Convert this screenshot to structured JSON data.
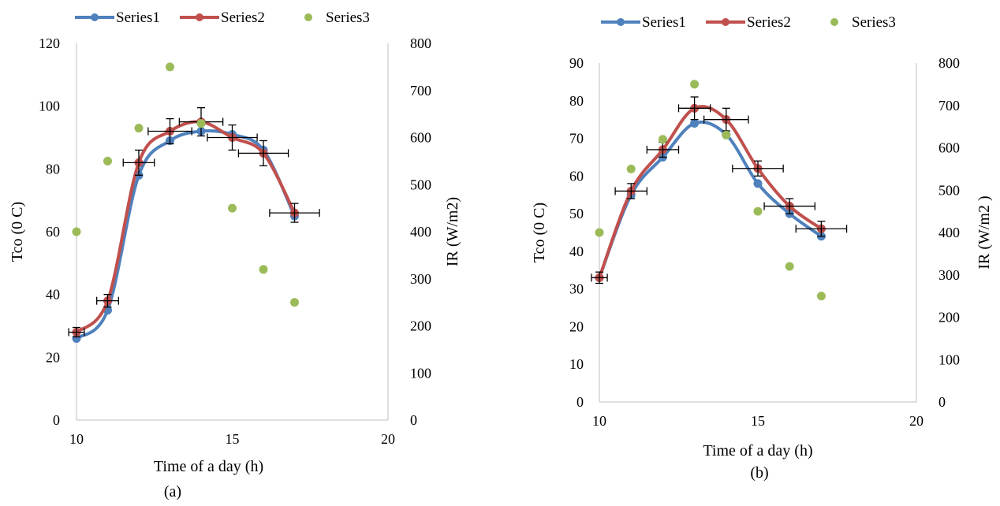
{
  "colors": {
    "series1": "#4f81bd",
    "series2": "#c0504d",
    "series3": "#9bbb59",
    "axis": "#bfbfbf",
    "errorbar": "#000000"
  },
  "chart_data": [
    {
      "type": "line",
      "caption": "(a)",
      "legend": {
        "position": "top",
        "entries": [
          "Series1",
          "Series2",
          "Series3"
        ]
      },
      "xlabel": "Time of a day (h)",
      "ylabel": "Tco (0 C)",
      "y2label": "IR (W/m2)",
      "xlim": [
        10,
        20
      ],
      "ylim": [
        0,
        120
      ],
      "y2lim": [
        0,
        800
      ],
      "xticks": [
        "10",
        "15",
        "20"
      ],
      "yticks": [
        "0",
        "20",
        "40",
        "60",
        "80",
        "100",
        "120"
      ],
      "y2ticks": [
        "0",
        "100",
        "200",
        "300",
        "400",
        "500",
        "600",
        "700",
        "800"
      ],
      "grid": false,
      "series": [
        {
          "name": "Series1",
          "axis": "left",
          "style": "smooth-line",
          "x": [
            10,
            11,
            12,
            13,
            14,
            15,
            16,
            17
          ],
          "y": [
            26,
            35,
            78,
            89,
            92,
            91,
            86,
            65
          ]
        },
        {
          "name": "Series2",
          "axis": "left",
          "style": "smooth-line",
          "x": [
            10,
            11,
            12,
            13,
            14,
            15,
            16,
            17
          ],
          "y": [
            28,
            38,
            82,
            92,
            95,
            90,
            85,
            66
          ],
          "xerr": [
            0.25,
            0.35,
            0.5,
            0.7,
            0.7,
            0.8,
            0.8,
            0.8
          ],
          "yerr": [
            1.5,
            2,
            4,
            4,
            4.5,
            4,
            4,
            3
          ]
        },
        {
          "name": "Series3",
          "axis": "right",
          "style": "scatter",
          "x": [
            10,
            11,
            12,
            13,
            14,
            15,
            16,
            17
          ],
          "y": [
            400,
            550,
            620,
            750,
            630,
            450,
            320,
            250
          ]
        }
      ]
    },
    {
      "type": "line",
      "caption": "(b)",
      "legend": {
        "position": "top",
        "entries": [
          "Series1",
          "Series2",
          "Series3"
        ]
      },
      "xlabel": "Time of a day (h)",
      "ylabel": "Tco (0 C)",
      "y2label": "IR (W/m2 )",
      "xlim": [
        10,
        20
      ],
      "ylim": [
        0,
        90
      ],
      "y2lim": [
        0,
        800
      ],
      "xticks": [
        "10",
        "15",
        "20"
      ],
      "yticks": [
        "0",
        "10",
        "20",
        "30",
        "40",
        "50",
        "60",
        "70",
        "80",
        "90"
      ],
      "y2ticks": [
        "0",
        "100",
        "200",
        "300",
        "400",
        "500",
        "600",
        "700",
        "800"
      ],
      "grid": false,
      "series": [
        {
          "name": "Series1",
          "axis": "left",
          "style": "smooth-line",
          "x": [
            10,
            11,
            12,
            13,
            14,
            15,
            16,
            17
          ],
          "y": [
            33,
            55,
            65,
            74,
            71,
            58,
            50,
            44
          ]
        },
        {
          "name": "Series2",
          "axis": "left",
          "style": "smooth-line",
          "x": [
            10,
            11,
            12,
            13,
            14,
            15,
            16,
            17
          ],
          "y": [
            33,
            56,
            67,
            78,
            75,
            62,
            52,
            46
          ],
          "xerr": [
            0.25,
            0.5,
            0.5,
            0.5,
            0.7,
            0.8,
            0.8,
            0.8
          ],
          "yerr": [
            1.5,
            2,
            2,
            3,
            3,
            2,
            2,
            2
          ]
        },
        {
          "name": "Series3",
          "axis": "right",
          "style": "scatter",
          "x": [
            10,
            11,
            12,
            13,
            14,
            15,
            16,
            17
          ],
          "y": [
            400,
            550,
            620,
            750,
            630,
            450,
            320,
            250
          ]
        }
      ]
    }
  ]
}
